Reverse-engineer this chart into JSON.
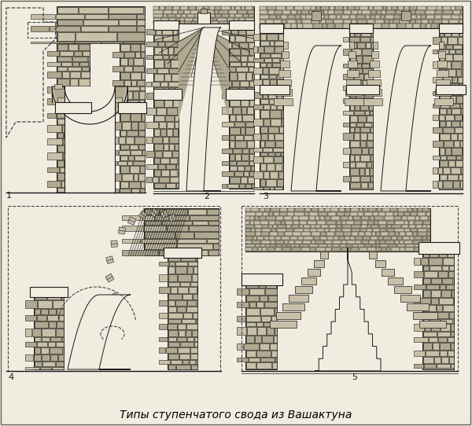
{
  "title": "Типы ступенчатого свода из Вашактуна",
  "title_fontsize": 10,
  "title_style": "italic",
  "bg": "#f0ece0",
  "fg": "#1a1a1a",
  "stone_light": "#c8c0a8",
  "stone_dark": "#908878",
  "stone_mid": "#b0a890",
  "white": "#f0ece0",
  "dash": "#444444",
  "figure_width": 6.0,
  "figure_height": 5.42,
  "dpi": 100
}
